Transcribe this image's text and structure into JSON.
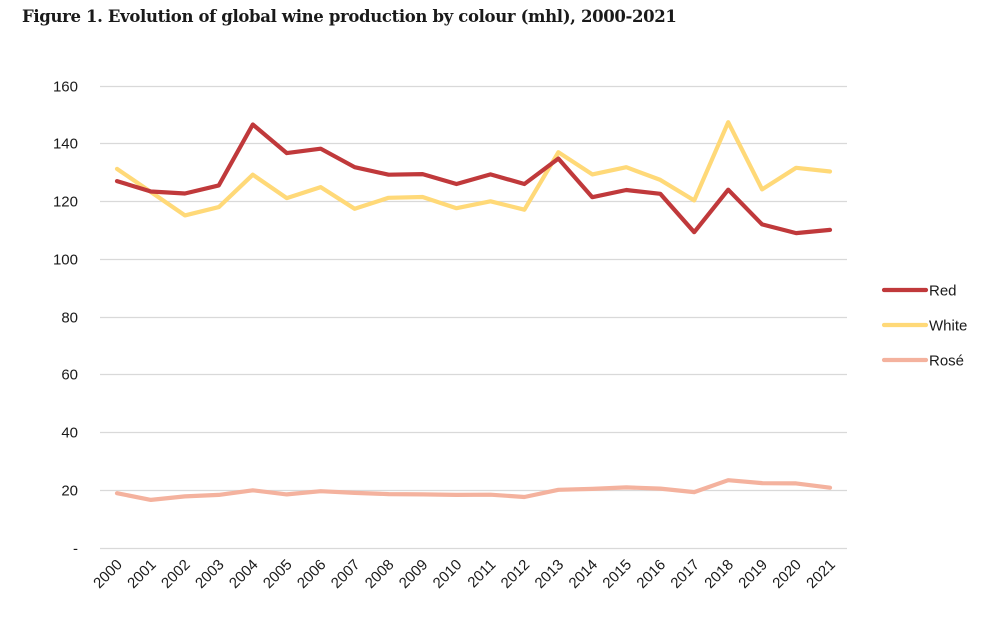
{
  "figure": {
    "title": "Figure 1. Evolution of global wine production by colour (mhl), 2000-2021"
  },
  "chart_data": {
    "type": "line",
    "title": "Figure 1. Evolution of global wine production by colour (mhl), 2000-2021",
    "xlabel": "",
    "ylabel": "",
    "categories": [
      "2000",
      "2001",
      "2002",
      "2003",
      "2004",
      "2005",
      "2006",
      "2007",
      "2008",
      "2009",
      "2010",
      "2011",
      "2012",
      "2013",
      "2014",
      "2015",
      "2016",
      "2017",
      "2018",
      "2019",
      "2020",
      "2021"
    ],
    "ylim": [
      0,
      160
    ],
    "yticks": [
      0,
      20,
      40,
      60,
      80,
      100,
      120,
      140,
      160
    ],
    "ytick_labels": [
      "-",
      "20",
      "40",
      "60",
      "80",
      "100",
      "120",
      "140",
      "160"
    ],
    "grid": true,
    "legend_position": "right",
    "series": [
      {
        "name": "Red",
        "color": "#C0393B",
        "values": [
          126.9,
          123.3,
          122.6,
          125.4,
          146.5,
          136.6,
          138.1,
          131.7,
          129.1,
          129.3,
          125.9,
          129.2,
          125.9,
          134.7,
          121.3,
          123.8,
          122.5,
          109.2,
          123.9,
          111.9,
          108.9,
          110.0
        ]
      },
      {
        "name": "White",
        "color": "#FFD978",
        "values": [
          131.1,
          123.1,
          115.0,
          117.9,
          129.1,
          121.0,
          124.8,
          117.3,
          121.1,
          121.4,
          117.5,
          119.9,
          117.0,
          136.9,
          129.2,
          131.7,
          127.3,
          120.2,
          147.3,
          124.0,
          131.5,
          130.2
        ]
      },
      {
        "name": "Rosé",
        "color": "#F4B29E",
        "values": [
          18.8,
          16.5,
          17.7,
          18.2,
          19.8,
          18.4,
          19.5,
          18.9,
          18.5,
          18.4,
          18.2,
          18.3,
          17.5,
          20.0,
          20.3,
          20.8,
          20.4,
          19.2,
          23.3,
          22.3,
          22.2,
          20.7
        ]
      }
    ]
  }
}
